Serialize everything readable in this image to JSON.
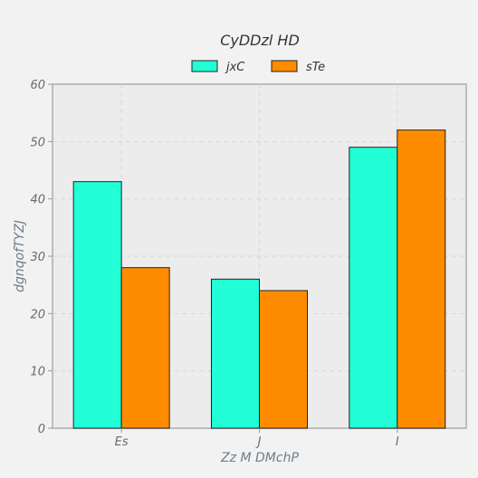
{
  "chart_data": {
    "type": "bar",
    "title": "CyDDzl HD",
    "xlabel": "Zz M DMchP",
    "ylabel": "dgnqofTYZJ",
    "categories": [
      "Es",
      "J",
      "I"
    ],
    "series": [
      {
        "name": "jxC",
        "color": "#22ffd6",
        "values": [
          43,
          26,
          49
        ]
      },
      {
        "name": "sTe",
        "color": "#ff8c00",
        "values": [
          28,
          24,
          52
        ]
      }
    ],
    "ylim": [
      0,
      60
    ],
    "yticks": [
      0,
      10,
      20,
      30,
      40,
      50,
      60
    ],
    "grid": true,
    "legend_position": "top-center"
  }
}
